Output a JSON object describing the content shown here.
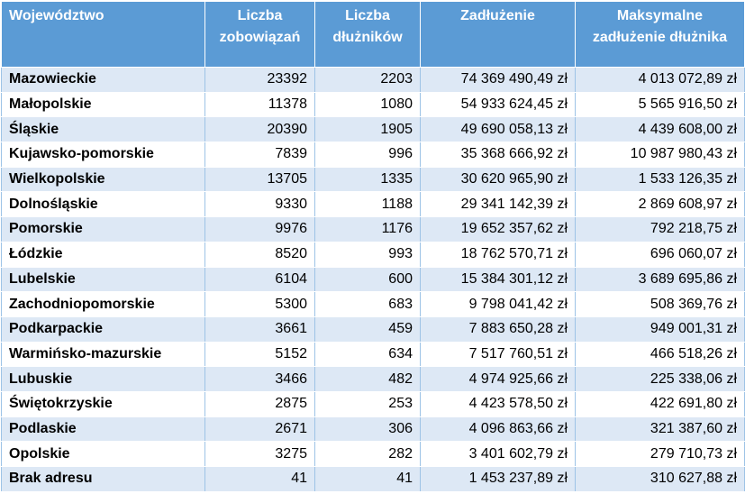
{
  "headers": [
    "Województwo",
    "Liczba zobowiązań",
    "Liczba dłużników",
    "Zadłużenie",
    "Maksymalne zadłużenie dłużnika"
  ],
  "rows": [
    [
      "Mazowieckie",
      "23392",
      "2203",
      "74 369 490,49 zł",
      "4 013 072,89 zł"
    ],
    [
      "Małopolskie",
      "11378",
      "1080",
      "54 933 624,45 zł",
      "5 565 916,50 zł"
    ],
    [
      "Śląskie",
      "20390",
      "1905",
      "49 690 058,13 zł",
      "4 439 608,00 zł"
    ],
    [
      "Kujawsko-pomorskie",
      "7839",
      "996",
      "35 368 666,92 zł",
      "10 987 980,43 zł"
    ],
    [
      "Wielkopolskie",
      "13705",
      "1335",
      "30 620 965,90 zł",
      "1 533 126,35 zł"
    ],
    [
      "Dolnośląskie",
      "9330",
      "1188",
      "29 341 142,39 zł",
      "2 869 608,97 zł"
    ],
    [
      "Pomorskie",
      "9976",
      "1176",
      "19 652 357,62 zł",
      "792 218,75 zł"
    ],
    [
      "Łódzkie",
      "8520",
      "993",
      "18 762 570,71 zł",
      "696 060,07 zł"
    ],
    [
      "Lubelskie",
      "6104",
      "600",
      "15 384 301,12 zł",
      "3 689 695,86 zł"
    ],
    [
      "Zachodniopomorskie",
      "5300",
      "683",
      "9 798 041,42 zł",
      "508 369,76 zł"
    ],
    [
      "Podkarpackie",
      "3661",
      "459",
      "7 883 650,28 zł",
      "949 001,31 zł"
    ],
    [
      "Warmińsko-mazurskie",
      "5152",
      "634",
      "7 517 760,51 zł",
      "466 518,26 zł"
    ],
    [
      "Lubuskie",
      "3466",
      "482",
      "4 974 925,66 zł",
      "225 338,06 zł"
    ],
    [
      "Świętokrzyskie",
      "2875",
      "253",
      "4 423 578,50 zł",
      "422 691,80 zł"
    ],
    [
      "Podlaskie",
      "2671",
      "306",
      "4 096 863,66 zł",
      "321 387,60 zł"
    ],
    [
      "Opolskie",
      "3275",
      "282",
      "3 401 602,79 zł",
      "279 710,73 zł"
    ],
    [
      "Brak adresu",
      "41",
      "41",
      "1 453 237,89 zł",
      "310 627,88 zł"
    ]
  ],
  "colors": {
    "header_bg": "#5b9bd5",
    "header_text": "#ffffff",
    "band_row": "#dde8f5",
    "plain_row": "#ffffff"
  }
}
